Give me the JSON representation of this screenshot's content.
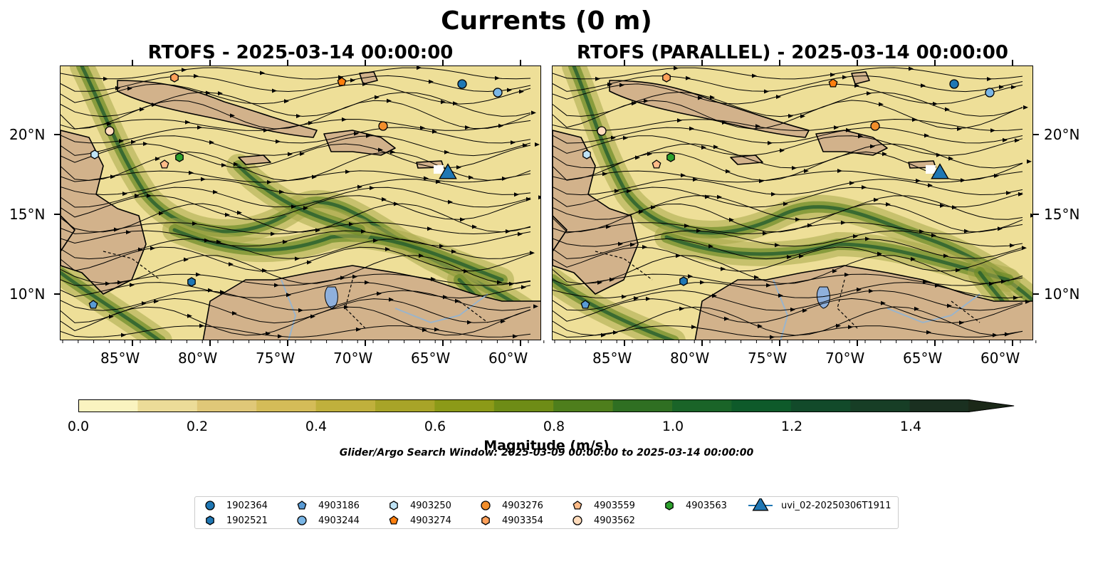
{
  "figure": {
    "title": "Currents (0 m)",
    "left_panel_title": "RTOFS - 2025-03-14 00:00:00",
    "right_panel_title": "RTOFS (PARALLEL) - 2025-03-14 00:00:00",
    "lon_ticks": [
      "85°W",
      "80°W",
      "75°W",
      "70°W",
      "65°W",
      "60°W"
    ],
    "lat_ticks": [
      "20°N",
      "15°N",
      "10°N"
    ],
    "colorbar": {
      "label": "Magnitude (m/s)",
      "ticks": [
        "0.0",
        "0.2",
        "0.4",
        "0.6",
        "0.8",
        "1.0",
        "1.2",
        "1.4"
      ],
      "colors": [
        "#faf3c0",
        "#ecdc98",
        "#e0c878",
        "#d4bc58",
        "#c0b03c",
        "#a8a428",
        "#8c9a18",
        "#6e8c16",
        "#4e7e1c",
        "#2f6f22",
        "#1a6428",
        "#0e5a2a",
        "#124a2a",
        "#173e26",
        "#1a3020",
        "#1b2818"
      ],
      "extend": "max"
    },
    "search_window": "Glider/Argo Search Window: 2025-03-09 00:00:00 to 2025-03-14 00:00:00",
    "legend": [
      {
        "label": "1902364",
        "marker": "circle",
        "color": "#1f77b4"
      },
      {
        "label": "1902521",
        "marker": "hexagon",
        "color": "#1f77b4"
      },
      {
        "label": "4903186",
        "marker": "pentagon",
        "color": "#5a9bd5"
      },
      {
        "label": "4903244",
        "marker": "circle",
        "color": "#7ab6e6"
      },
      {
        "label": "4903250",
        "marker": "hexagon",
        "color": "#bfe3f5"
      },
      {
        "label": "4903274",
        "marker": "pentagon",
        "color": "#ff7f0e"
      },
      {
        "label": "4903276",
        "marker": "circle",
        "color": "#f28e2b"
      },
      {
        "label": "4903354",
        "marker": "hexagon",
        "color": "#ffa05a"
      },
      {
        "label": "4903559",
        "marker": "pentagon",
        "color": "#ffbb88"
      },
      {
        "label": "4903562",
        "marker": "circle",
        "color": "#ffdcbc"
      },
      {
        "label": "4903563",
        "marker": "hexagon",
        "color": "#2ca02c"
      },
      {
        "label": "uvi_02-20250306T1911",
        "marker": "triangle",
        "color": "#1f77b4"
      }
    ]
  }
}
